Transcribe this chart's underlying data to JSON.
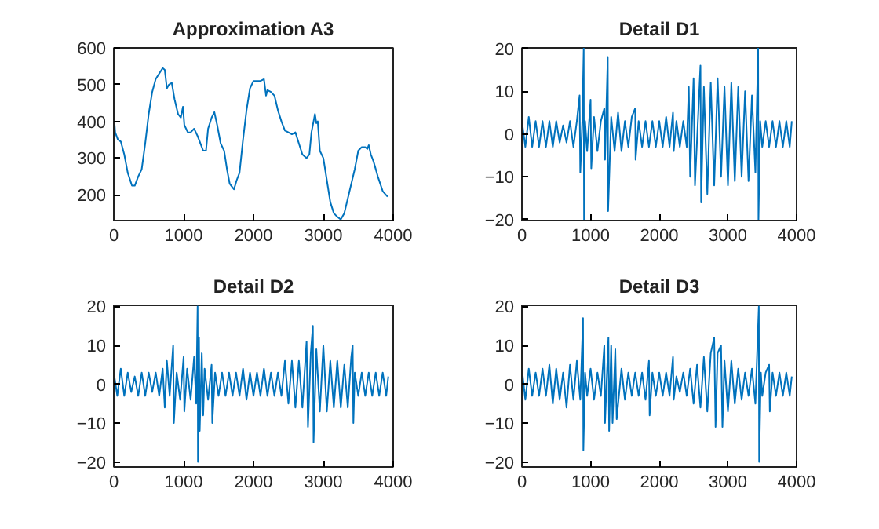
{
  "chart_data": [
    {
      "type": "line",
      "title": "Approximation A3",
      "color": "#0072bd",
      "xlim": [
        0,
        4000
      ],
      "ylim": [
        130,
        600
      ],
      "xticks": [
        0,
        1000,
        2000,
        3000,
        4000
      ],
      "yticks": [
        200,
        300,
        400,
        500,
        600
      ],
      "x": [
        0,
        20,
        60,
        100,
        150,
        200,
        260,
        300,
        350,
        400,
        450,
        500,
        550,
        600,
        650,
        700,
        730,
        760,
        790,
        830,
        870,
        920,
        960,
        990,
        1010,
        1060,
        1100,
        1150,
        1200,
        1260,
        1280,
        1320,
        1350,
        1400,
        1440,
        1480,
        1530,
        1580,
        1620,
        1660,
        1720,
        1760,
        1800,
        1850,
        1900,
        1950,
        2000,
        2050,
        2100,
        2150,
        2180,
        2200,
        2250,
        2300,
        2350,
        2400,
        2450,
        2500,
        2550,
        2600,
        2650,
        2700,
        2760,
        2800,
        2830,
        2860,
        2880,
        2900,
        2920,
        2950,
        3000,
        3050,
        3100,
        3150,
        3200,
        3250,
        3300,
        3350,
        3400,
        3450,
        3500,
        3550,
        3600,
        3630,
        3650,
        3680,
        3720,
        3780,
        3850,
        3920
      ],
      "values": [
        420,
        370,
        350,
        345,
        310,
        260,
        225,
        225,
        250,
        270,
        340,
        420,
        480,
        515,
        530,
        545,
        540,
        490,
        500,
        505,
        460,
        420,
        410,
        440,
        390,
        370,
        370,
        380,
        360,
        330,
        320,
        320,
        380,
        410,
        425,
        390,
        340,
        320,
        270,
        230,
        215,
        240,
        260,
        350,
        430,
        490,
        510,
        510,
        510,
        515,
        470,
        485,
        480,
        470,
        430,
        400,
        375,
        370,
        365,
        370,
        340,
        310,
        300,
        310,
        370,
        400,
        420,
        395,
        400,
        320,
        300,
        240,
        180,
        150,
        140,
        133,
        150,
        190,
        230,
        270,
        320,
        330,
        330,
        325,
        335,
        310,
        290,
        250,
        210,
        195
      ]
    },
    {
      "type": "line",
      "title": "Detail D1",
      "color": "#0072bd",
      "xlim": [
        0,
        4000
      ],
      "ylim": [
        -20.2,
        20.1
      ],
      "xticks": [
        0,
        1000,
        2000,
        3000,
        4000
      ],
      "yticks": [
        -20,
        -10,
        0,
        10,
        20
      ],
      "x": [
        0,
        50,
        100,
        150,
        200,
        250,
        300,
        350,
        400,
        450,
        500,
        550,
        600,
        650,
        700,
        750,
        800,
        840,
        850,
        880,
        900,
        905,
        920,
        950,
        1000,
        1010,
        1050,
        1100,
        1150,
        1200,
        1210,
        1250,
        1255,
        1300,
        1350,
        1400,
        1450,
        1500,
        1550,
        1600,
        1650,
        1655,
        1700,
        1750,
        1800,
        1850,
        1900,
        1950,
        2000,
        2050,
        2100,
        2150,
        2200,
        2210,
        2250,
        2300,
        2350,
        2400,
        2430,
        2450,
        2500,
        2520,
        2600,
        2610,
        2650,
        2700,
        2750,
        2800,
        2850,
        2900,
        2950,
        3000,
        3050,
        3100,
        3150,
        3200,
        3250,
        3300,
        3350,
        3400,
        3440,
        3445,
        3470,
        3500,
        3550,
        3600,
        3650,
        3700,
        3750,
        3800,
        3850,
        3900,
        3930
      ],
      "values": [
        3,
        -3,
        4,
        -3,
        3,
        -3,
        3,
        -3,
        3,
        -3,
        3,
        -2,
        2,
        -2,
        3,
        -3,
        3,
        9,
        -9,
        3,
        20,
        -20,
        3,
        -4,
        8,
        -8,
        4,
        -4,
        3,
        6,
        -6,
        18,
        -18,
        4,
        -4,
        5,
        -4,
        3,
        -3,
        4,
        6,
        -6,
        3,
        -3,
        3,
        -3,
        3,
        -3,
        3,
        -3,
        4,
        -3,
        5,
        -4,
        3,
        -3,
        3,
        -3,
        11,
        -10,
        13,
        -12,
        16,
        -16,
        11,
        -14,
        12,
        -12,
        13,
        -10,
        11,
        -12,
        12,
        -11,
        11,
        -10,
        10,
        -11,
        9,
        -9,
        20,
        -20,
        3,
        -3,
        3,
        -3,
        3,
        -3,
        3,
        -3,
        3,
        -3,
        3
      ]
    },
    {
      "type": "line",
      "title": "Detail D2",
      "color": "#0072bd",
      "xlim": [
        0,
        4000
      ],
      "ylim": [
        -21.3,
        20.3
      ],
      "xticks": [
        0,
        1000,
        2000,
        3000,
        4000
      ],
      "yticks": [
        -20,
        -10,
        0,
        10,
        20
      ],
      "x": [
        0,
        50,
        100,
        150,
        200,
        250,
        300,
        350,
        400,
        450,
        500,
        550,
        600,
        650,
        700,
        730,
        760,
        800,
        850,
        860,
        900,
        950,
        1000,
        1010,
        1050,
        1100,
        1150,
        1180,
        1200,
        1205,
        1220,
        1230,
        1260,
        1280,
        1300,
        1350,
        1400,
        1410,
        1450,
        1500,
        1550,
        1600,
        1650,
        1700,
        1750,
        1800,
        1850,
        1900,
        1950,
        2000,
        2050,
        2100,
        2150,
        2200,
        2250,
        2300,
        2350,
        2400,
        2450,
        2500,
        2550,
        2600,
        2650,
        2700,
        2760,
        2780,
        2820,
        2850,
        2860,
        2900,
        2950,
        3000,
        3050,
        3100,
        3150,
        3200,
        3250,
        3300,
        3350,
        3400,
        3420,
        3430,
        3450,
        3500,
        3550,
        3600,
        3650,
        3700,
        3750,
        3800,
        3850,
        3900,
        3930
      ],
      "values": [
        3,
        -3,
        4,
        -3,
        3,
        -2,
        2,
        -3,
        3,
        -3,
        3,
        -2,
        3,
        -3,
        4,
        -6,
        6,
        -3,
        10,
        -10,
        3,
        -4,
        7,
        -7,
        4,
        -4,
        7,
        -5,
        20,
        -20,
        12,
        -12,
        8,
        -8,
        4,
        -4,
        5,
        -10,
        3,
        -3,
        3,
        -3,
        3,
        -3,
        3,
        -3,
        4,
        -4,
        3,
        -3,
        3,
        -3,
        4,
        -3,
        3,
        -3,
        3,
        -3,
        6,
        -5,
        6,
        -6,
        6,
        -6,
        11,
        -11,
        8,
        15,
        -15,
        9,
        -7,
        10,
        -7,
        6,
        -6,
        6,
        -6,
        5,
        -6,
        7,
        10,
        -10,
        3,
        -3,
        3,
        -3,
        3,
        -3,
        3,
        -3,
        3,
        -3,
        2
      ]
    },
    {
      "type": "line",
      "title": "Detail D3",
      "color": "#0072bd",
      "xlim": [
        0,
        4000
      ],
      "ylim": [
        -21.3,
        20.3
      ],
      "xticks": [
        0,
        1000,
        2000,
        3000,
        4000
      ],
      "yticks": [
        -20,
        -10,
        0,
        10,
        20
      ],
      "x": [
        0,
        50,
        100,
        150,
        200,
        250,
        300,
        350,
        400,
        450,
        500,
        550,
        600,
        650,
        700,
        750,
        800,
        850,
        890,
        895,
        920,
        950,
        1000,
        1050,
        1100,
        1150,
        1200,
        1210,
        1260,
        1270,
        1300,
        1320,
        1360,
        1380,
        1450,
        1500,
        1550,
        1600,
        1650,
        1700,
        1750,
        1800,
        1850,
        1860,
        1900,
        1950,
        2000,
        2050,
        2100,
        2150,
        2200,
        2210,
        2250,
        2300,
        2350,
        2400,
        2450,
        2500,
        2550,
        2600,
        2650,
        2700,
        2750,
        2800,
        2820,
        2850,
        2900,
        2920,
        2950,
        3000,
        3050,
        3100,
        3150,
        3200,
        3250,
        3300,
        3350,
        3400,
        3450,
        3455,
        3480,
        3500,
        3550,
        3600,
        3610,
        3650,
        3700,
        3750,
        3800,
        3850,
        3900,
        3930
      ],
      "values": [
        4,
        -4,
        4,
        -3,
        3,
        -3,
        4,
        -3,
        5,
        -5,
        4,
        -4,
        3,
        -6,
        5,
        -4,
        6,
        -4,
        17,
        -17,
        3,
        -3,
        4,
        -4,
        3,
        -3,
        10,
        -10,
        12,
        -12,
        10,
        -10,
        9,
        -9,
        4,
        -4,
        3,
        -3,
        3,
        -3,
        3,
        -4,
        6,
        -8,
        3,
        -3,
        3,
        -3,
        3,
        -3,
        7,
        -4,
        2,
        -2,
        3,
        -3,
        4,
        -5,
        5,
        -6,
        7,
        -7,
        8,
        12,
        -11,
        8,
        10,
        -11,
        6,
        -7,
        6,
        -5,
        4,
        -4,
        3,
        -3,
        4,
        -5,
        20,
        -20,
        3,
        -3,
        3,
        5,
        -7,
        3,
        -3,
        3,
        -3,
        3,
        -3,
        2
      ]
    }
  ]
}
